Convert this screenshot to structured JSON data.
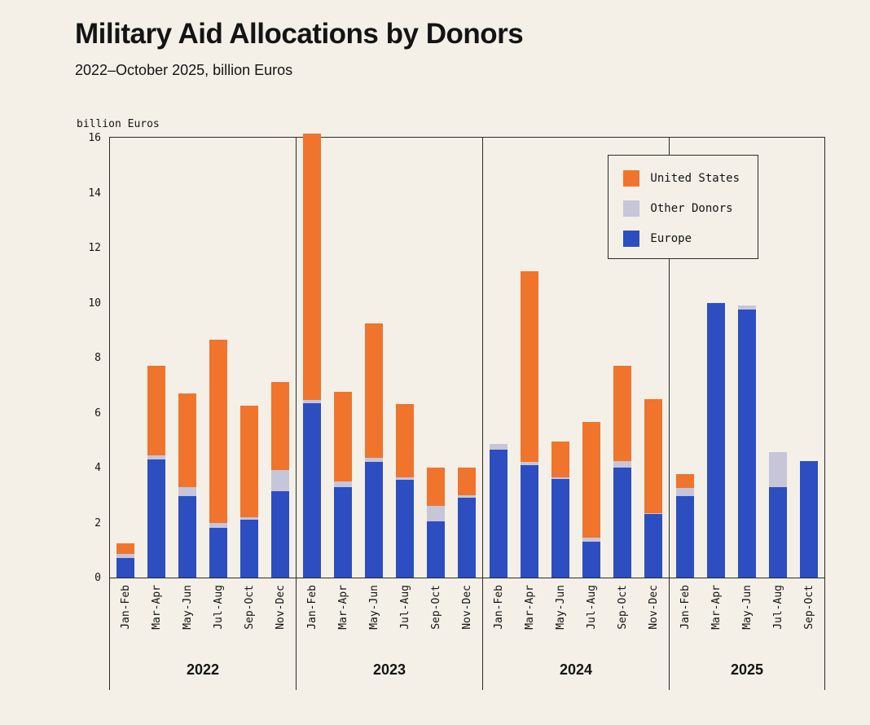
{
  "header": {
    "title": "Military Aid Allocations by Donors",
    "subtitle": "2022–October 2025, billion Euros"
  },
  "chart_data": {
    "type": "bar",
    "stacked": true,
    "title": "Military Aid Allocations by Donors",
    "subtitle": "2022–October 2025, billion Euros",
    "ylabel": "billion Euros",
    "xlabel": "",
    "ylim": [
      0,
      16
    ],
    "yticks": [
      0,
      2,
      4,
      6,
      8,
      10,
      12,
      14,
      16
    ],
    "grid": false,
    "legend_position": "top-right",
    "legend": [
      "United States",
      "Other Donors",
      "Europe"
    ],
    "stack_order_bottom_to_top": [
      "Europe",
      "Other Donors",
      "United States"
    ],
    "colors": {
      "United States": "#f0742c",
      "Other Donors": "#c7c5d8",
      "Europe": "#2c4ec0"
    },
    "groups": [
      {
        "year": "2022",
        "categories": [
          "Jan-Feb",
          "Mar-Apr",
          "May-Jun",
          "Jul-Aug",
          "Sep-Oct",
          "Nov-Dec"
        ],
        "series": {
          "Europe": [
            0.7,
            4.3,
            2.95,
            1.8,
            2.1,
            3.15
          ],
          "Other Donors": [
            0.15,
            0.15,
            0.35,
            0.2,
            0.1,
            0.75
          ],
          "United States": [
            0.4,
            3.25,
            3.4,
            6.65,
            4.05,
            3.2
          ]
        }
      },
      {
        "year": "2023",
        "categories": [
          "Jan-Feb",
          "Mar-Apr",
          "May-Jun",
          "Jul-Aug",
          "Sep-Oct",
          "Nov-Dec"
        ],
        "series": {
          "Europe": [
            6.35,
            3.3,
            4.2,
            3.55,
            2.05,
            2.9
          ],
          "Other Donors": [
            0.1,
            0.2,
            0.15,
            0.1,
            0.55,
            0.1
          ],
          "United States": [
            9.7,
            3.25,
            4.9,
            2.65,
            1.4,
            1.0
          ]
        }
      },
      {
        "year": "2024",
        "categories": [
          "Jan-Feb",
          "Mar-Apr",
          "May-Jun",
          "Jul-Aug",
          "Sep-Oct",
          "Nov-Dec"
        ],
        "series": {
          "Europe": [
            4.65,
            4.1,
            3.6,
            1.3,
            4.0,
            2.3
          ],
          "Other Donors": [
            0.2,
            0.1,
            0.05,
            0.15,
            0.25,
            0.05
          ],
          "United States": [
            0.0,
            6.95,
            1.3,
            4.2,
            3.45,
            4.15
          ]
        }
      },
      {
        "year": "2025",
        "categories": [
          "Jan-Feb",
          "Mar-Apr",
          "May-Jun",
          "Jul-Aug",
          "Sep-Oct"
        ],
        "series": {
          "Europe": [
            2.95,
            10.0,
            9.75,
            3.3,
            4.25
          ],
          "Other Donors": [
            0.3,
            0.0,
            0.15,
            1.25,
            0.0
          ],
          "United States": [
            0.5,
            0.0,
            0.0,
            0.0,
            0.0
          ]
        }
      }
    ]
  }
}
